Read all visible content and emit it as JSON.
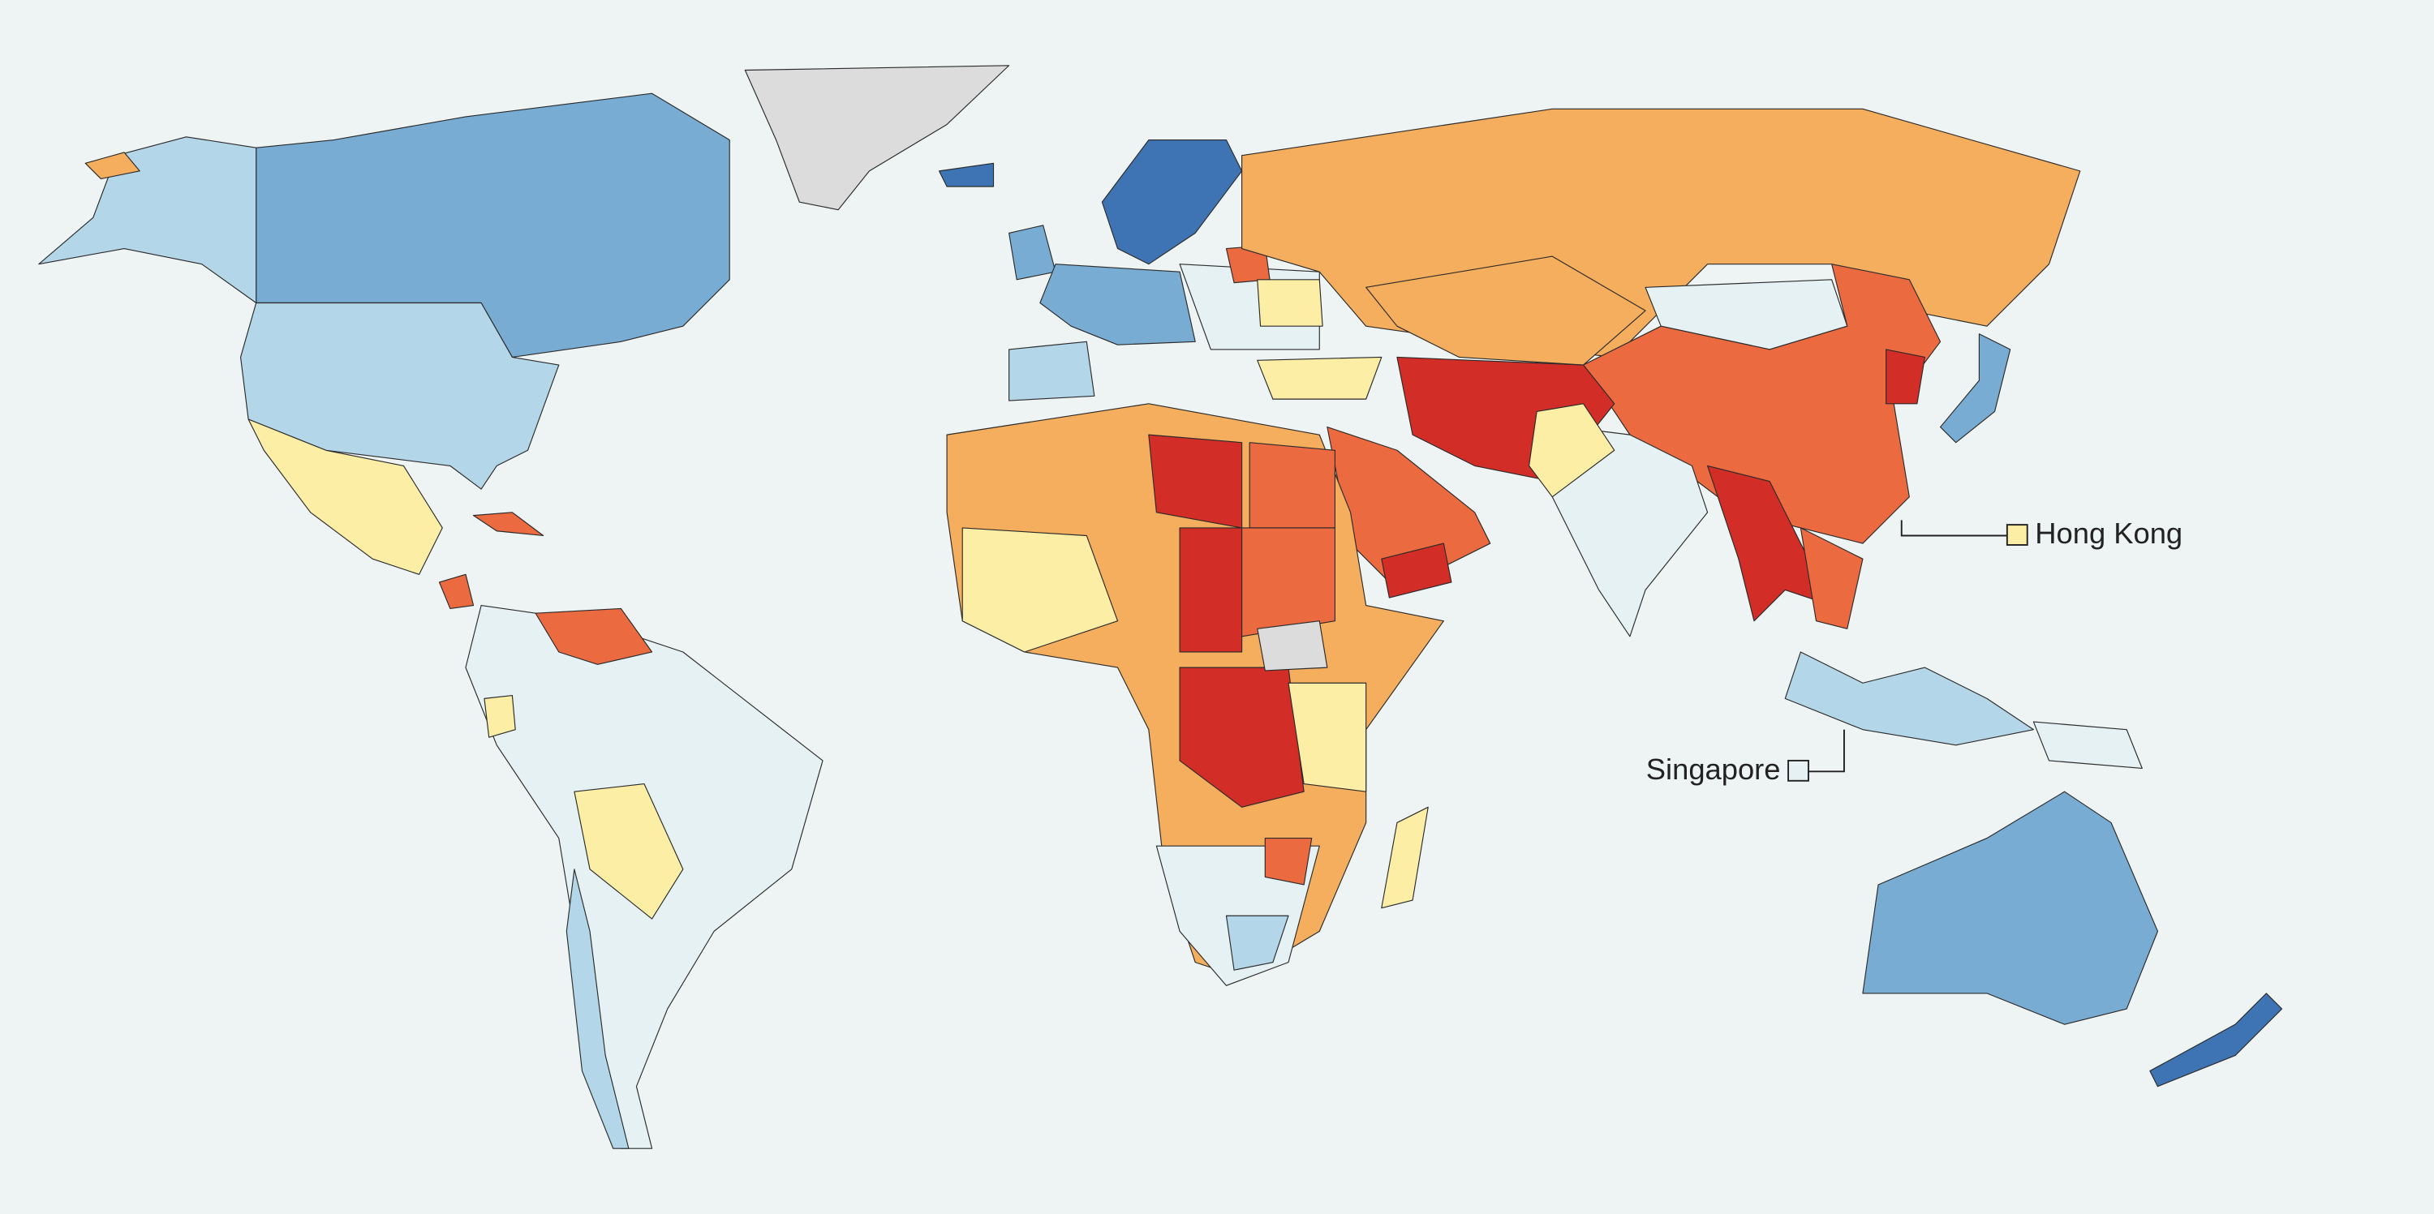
{
  "annotations": [
    {
      "label": "Hong Kong"
    },
    {
      "label": "Singapore"
    }
  ]
}
